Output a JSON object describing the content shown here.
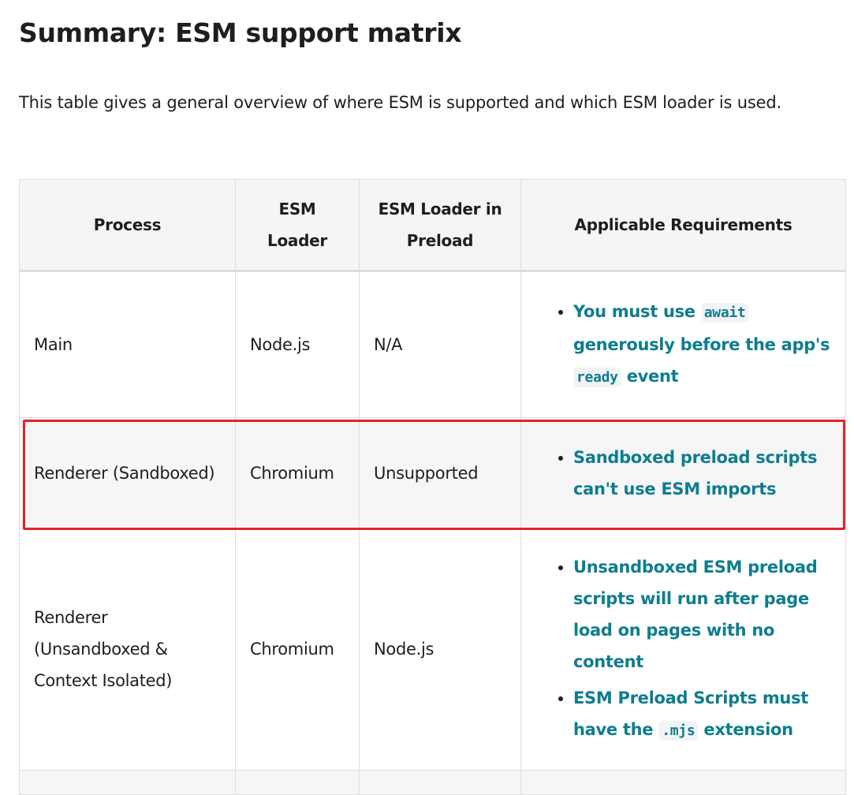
{
  "heading": "Summary: ESM support matrix",
  "intro": "This table gives a general overview of where ESM is supported and which ESM loader is used.",
  "colors": {
    "link": "#0e7d8e",
    "highlight": "#e8202c",
    "header_bg": "#f5f5f5"
  },
  "table": {
    "headers": [
      "Process",
      "ESM Loader",
      "ESM Loader in Preload",
      "Applicable Requirements"
    ],
    "rows": [
      {
        "process": "Main",
        "loader": "Node.js",
        "preload": "N/A",
        "req1": {
          "a": "You must use ",
          "code1": "await",
          "b": " generously before the app's ",
          "code2": "ready",
          "c": " event"
        }
      },
      {
        "process": "Renderer (Sandboxed)",
        "loader": "Chromium",
        "preload": "Unsupported",
        "req1": "Sandboxed preload scripts can't use ESM imports"
      },
      {
        "process": "Renderer (Unsandboxed & Context Isolated)",
        "loader": "Chromium",
        "preload": "Node.js",
        "req1": "Unsandboxed ESM preload scripts will run after page load on pages with no content",
        "req2": {
          "a": "ESM Preload Scripts must have the ",
          "code": ".mjs",
          "b": " extension"
        }
      }
    ]
  }
}
